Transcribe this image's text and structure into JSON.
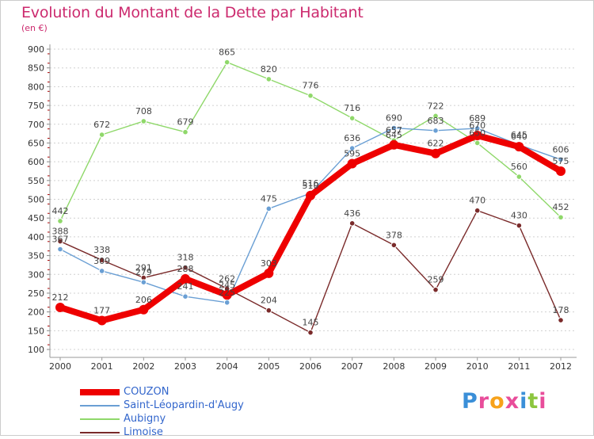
{
  "chart_data": {
    "type": "line",
    "title": "Evolution du Montant de la Dette par Habitant",
    "subtitle": "(en €)",
    "x": [
      2000,
      2001,
      2002,
      2003,
      2004,
      2005,
      2006,
      2007,
      2008,
      2009,
      2010,
      2011,
      2012
    ],
    "x_tick_labels": [
      "2000",
      "2001",
      "2002",
      "2003",
      "2004",
      "2005",
      "2006",
      "2007",
      "2008",
      "2009",
      "2010",
      "2011",
      "2012"
    ],
    "ylim": [
      100,
      900
    ],
    "y_ticks": [
      100,
      150,
      200,
      250,
      300,
      350,
      400,
      450,
      500,
      550,
      600,
      650,
      700,
      750,
      800,
      850,
      900
    ],
    "grid": "horizontal dotted",
    "legend_position": "bottom-left",
    "series": [
      {
        "name": "COUZON",
        "color": "#ee0000",
        "values": [
          212,
          177,
          206,
          288,
          245,
          303,
          510,
          595,
          645,
          622,
          670,
          640,
          575
        ]
      },
      {
        "name": "Saint-Léopardin-d'Augy",
        "color": "#6a9fd4",
        "values": [
          367,
          309,
          279,
          241,
          225,
          475,
          516,
          636,
          690,
          683,
          689,
          645,
          606
        ]
      },
      {
        "name": "Aubigny",
        "color": "#8fd86a",
        "values": [
          442,
          672,
          708,
          679,
          865,
          820,
          776,
          716,
          657,
          722,
          650,
          560,
          452
        ]
      },
      {
        "name": "Limoise",
        "color": "#7a2a2a",
        "values": [
          388,
          338,
          291,
          318,
          262,
          204,
          145,
          436,
          378,
          259,
          470,
          430,
          178
        ]
      }
    ]
  },
  "logo": {
    "text": "Proxiti",
    "letters": [
      {
        "ch": "P",
        "color": "#3a8fd8"
      },
      {
        "ch": "r",
        "color": "#e84d9a"
      },
      {
        "ch": "o",
        "color": "#f7a21b"
      },
      {
        "ch": "x",
        "color": "#e84d9a"
      },
      {
        "ch": "i",
        "color": "#3a8fd8"
      },
      {
        "ch": "t",
        "color": "#8cc63f"
      },
      {
        "ch": "i",
        "color": "#e84d9a"
      }
    ]
  }
}
